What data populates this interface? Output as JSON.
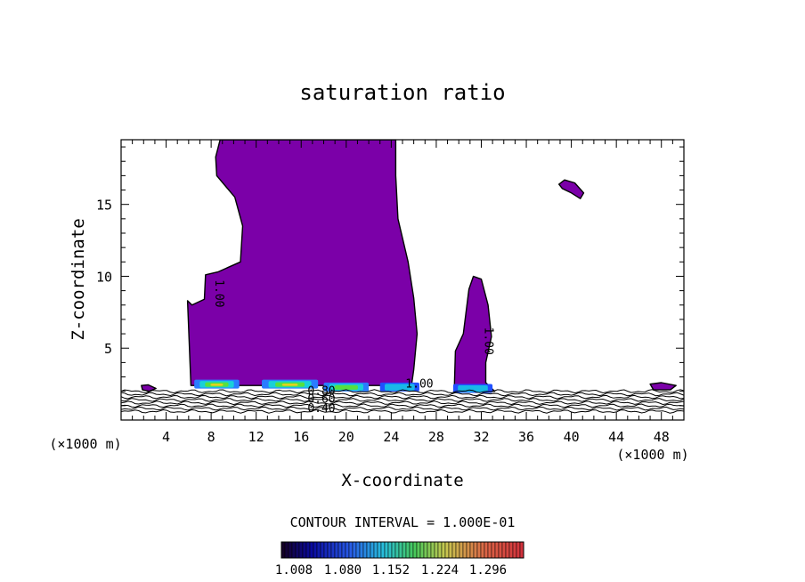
{
  "chart_data": {
    "type": "contour",
    "title": "saturation ratio",
    "xlabel": "X-coordinate",
    "ylabel": "Z-coordinate",
    "x_unit": "(×1000 m)",
    "y_unit": "(×1000 m)",
    "xlim": [
      0,
      50
    ],
    "ylim": [
      0,
      19.5
    ],
    "x_ticks": [
      4,
      8,
      12,
      16,
      20,
      24,
      28,
      32,
      36,
      40,
      44,
      48
    ],
    "y_ticks": [
      5,
      10,
      15
    ],
    "contour_interval_label": "CONTOUR INTERVAL = 1.000E-01",
    "contour_labels": [
      "1.00",
      "1.00",
      "0.80",
      "0.60",
      "0.40",
      "1.00"
    ],
    "colorbar_tick_labels": [
      "1.008",
      "1.080",
      "1.152",
      "1.224",
      "1.296"
    ],
    "fill_color": "#7b00a8",
    "supersaturated_regions": [
      {
        "name": "main cloud",
        "points": [
          [
            8.8,
            19.5
          ],
          [
            24.4,
            19.5
          ],
          [
            24.4,
            17.0
          ],
          [
            24.6,
            14.0
          ],
          [
            25.5,
            11.0
          ],
          [
            26.0,
            8.5
          ],
          [
            26.3,
            6.0
          ],
          [
            26.0,
            3.5
          ],
          [
            25.8,
            2.4
          ],
          [
            6.2,
            2.4
          ],
          [
            5.9,
            8.3
          ],
          [
            6.3,
            8.0
          ],
          [
            7.4,
            8.4
          ],
          [
            7.5,
            10.1
          ],
          [
            8.6,
            10.3
          ],
          [
            10.6,
            11.0
          ],
          [
            10.8,
            13.5
          ],
          [
            10.1,
            15.5
          ],
          [
            8.5,
            17.0
          ],
          [
            8.4,
            18.3
          ]
        ]
      },
      {
        "name": "second cloud",
        "points": [
          [
            30.9,
            9.1
          ],
          [
            31.3,
            10.0
          ],
          [
            32.0,
            9.8
          ],
          [
            32.6,
            8.0
          ],
          [
            32.9,
            5.8
          ],
          [
            32.4,
            4.0
          ],
          [
            32.4,
            2.6
          ],
          [
            33.2,
            2.0
          ],
          [
            29.6,
            2.0
          ],
          [
            29.7,
            4.8
          ],
          [
            30.4,
            6.0
          ]
        ]
      },
      {
        "name": "small patch upper right",
        "points": [
          [
            38.9,
            16.4
          ],
          [
            39.4,
            16.7
          ],
          [
            40.3,
            16.5
          ],
          [
            41.1,
            15.8
          ],
          [
            40.8,
            15.4
          ],
          [
            40.0,
            15.8
          ],
          [
            39.2,
            16.1
          ]
        ]
      },
      {
        "name": "patch left",
        "points": [
          [
            1.8,
            2.4
          ],
          [
            2.4,
            2.45
          ],
          [
            3.1,
            2.2
          ],
          [
            2.5,
            2.0
          ],
          [
            1.9,
            2.1
          ]
        ]
      },
      {
        "name": "patch right",
        "points": [
          [
            47.0,
            2.5
          ],
          [
            48.0,
            2.6
          ],
          [
            49.3,
            2.4
          ],
          [
            48.8,
            2.1
          ],
          [
            47.3,
            2.1
          ]
        ]
      }
    ],
    "colored_band_segments": [
      {
        "x": [
          6.5,
          10.5
        ],
        "z": 2.5,
        "level": "high"
      },
      {
        "x": [
          12.5,
          17.5
        ],
        "z": 2.5,
        "level": "high"
      },
      {
        "x": [
          18.0,
          22.0
        ],
        "z": 2.3,
        "level": "mid"
      },
      {
        "x": [
          23.0,
          26.5
        ],
        "z": 2.3,
        "level": "low"
      },
      {
        "x": [
          29.5,
          33.0
        ],
        "z": 2.2,
        "level": "low"
      }
    ],
    "subsaturated_contour_heights": [
      2.0,
      1.8,
      1.6,
      1.4,
      1.2,
      1.0,
      0.8,
      0.6
    ]
  }
}
